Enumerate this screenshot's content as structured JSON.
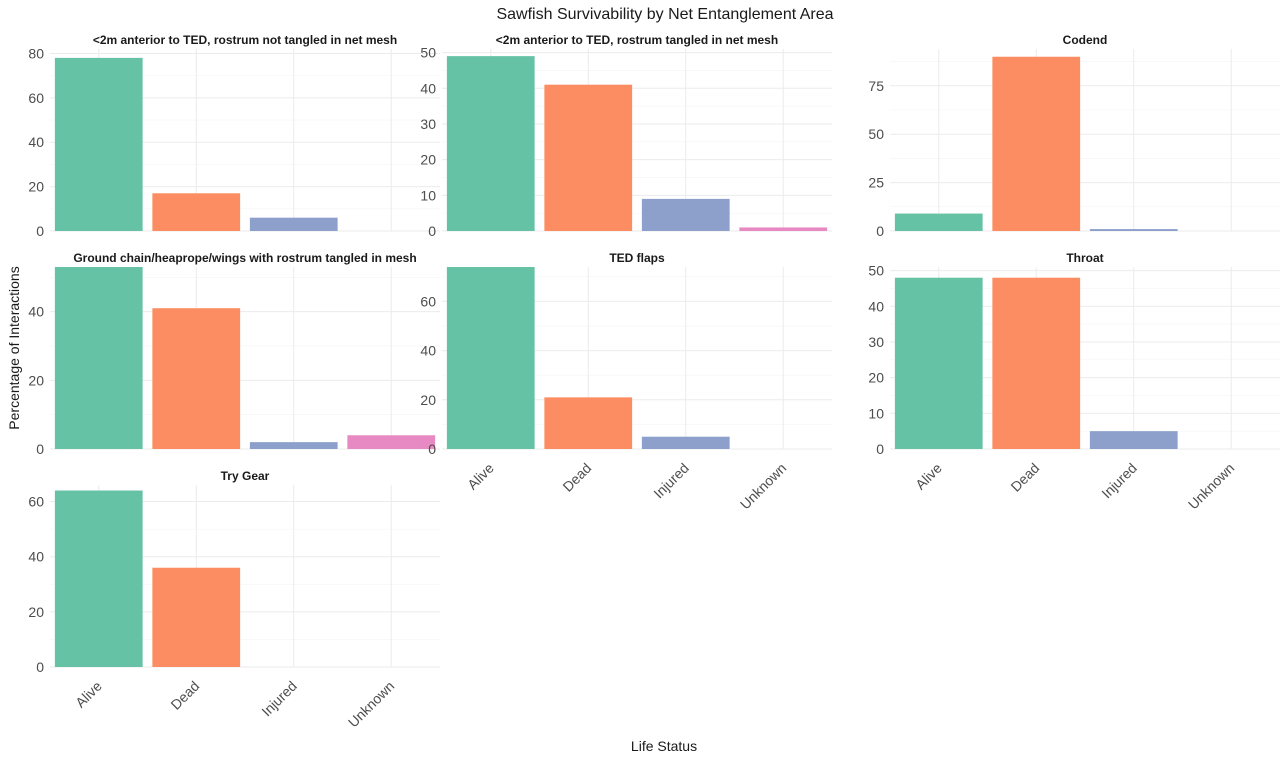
{
  "chart_data": {
    "type": "bar",
    "title": "Sawfish Survivability by Net Entanglement Area",
    "xlabel": "Life Status",
    "ylabel": "Percentage of Interactions",
    "categories": [
      "Alive",
      "Dead",
      "Injured",
      "Unknown"
    ],
    "colors": {
      "Alive": "#66c2a5",
      "Dead": "#fc8d62",
      "Injured": "#8da0cb",
      "Unknown": "#e78ac3"
    },
    "grid": true,
    "facets": [
      {
        "title": "<2m anterior to TED, rostrum not tangled in net mesh",
        "values": [
          78,
          17,
          6,
          0
        ],
        "ylim": [
          0,
          82
        ],
        "yticks": [
          0,
          20,
          40,
          60,
          80
        ]
      },
      {
        "title": "<2m anterior to TED, rostrum tangled in net mesh",
        "values": [
          49,
          41,
          9,
          1
        ],
        "ylim": [
          0,
          51
        ],
        "yticks": [
          0,
          10,
          20,
          30,
          40,
          50
        ]
      },
      {
        "title": "Codend",
        "values": [
          9,
          90,
          1,
          0
        ],
        "ylim": [
          0,
          94
        ],
        "yticks": [
          0,
          25,
          50,
          75
        ]
      },
      {
        "title": "Ground chain/heaprope/wings with rostrum tangled in mesh",
        "values": [
          53,
          41,
          2,
          4
        ],
        "ylim": [
          0,
          53
        ],
        "yticks": [
          0,
          20,
          40
        ]
      },
      {
        "title": "TED flaps",
        "values": [
          74,
          21,
          5,
          0
        ],
        "ylim": [
          0,
          74
        ],
        "yticks": [
          0,
          20,
          40,
          60
        ]
      },
      {
        "title": "Throat",
        "values": [
          48,
          48,
          5,
          0
        ],
        "ylim": [
          0,
          51
        ],
        "yticks": [
          0,
          10,
          20,
          30,
          40,
          50
        ]
      },
      {
        "title": "Try Gear",
        "values": [
          64,
          36,
          0,
          0
        ],
        "ylim": [
          0,
          66
        ],
        "yticks": [
          0,
          20,
          40,
          60
        ]
      }
    ]
  }
}
